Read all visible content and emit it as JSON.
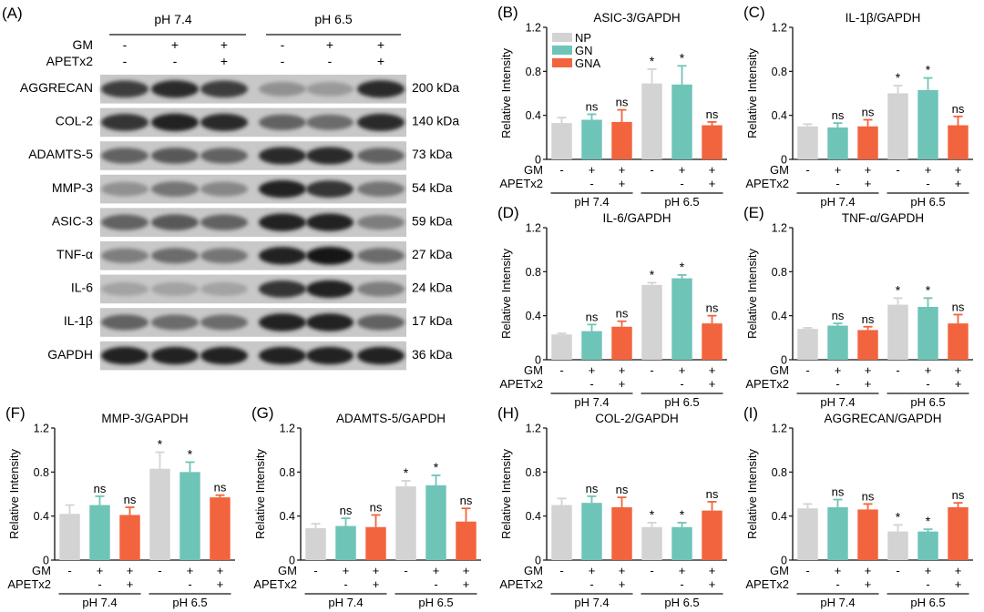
{
  "colors": {
    "NP": "#d3d3d3",
    "GN": "#6fc4b8",
    "GNA": "#f2643d"
  },
  "blot": {
    "panel_letter": "(A)",
    "group_labels": [
      "pH 7.4",
      "pH 6.5"
    ],
    "row_labels": [
      "GM",
      "APETx2"
    ],
    "gm_marks": [
      "-",
      "+",
      "+",
      "-",
      "+",
      "+"
    ],
    "apetx2_marks": [
      "-",
      "-",
      "+",
      "-",
      "-",
      "+"
    ],
    "bands": [
      {
        "protein": "AGGRECAN",
        "size": "200 kDa"
      },
      {
        "protein": "COL-2",
        "size": "140 kDa"
      },
      {
        "protein": "ADAMTS-5",
        "size": "73 kDa"
      },
      {
        "protein": "MMP-3",
        "size": "54 kDa"
      },
      {
        "protein": "ASIC-3",
        "size": "59 kDa"
      },
      {
        "protein": "TNF-α",
        "size": "27 kDa"
      },
      {
        "protein": "IL-6",
        "size": "24 kDa"
      },
      {
        "protein": "IL-1β",
        "size": "17 kDa"
      },
      {
        "protein": "GAPDH",
        "size": "36 kDa"
      }
    ]
  },
  "chart_data": [
    {
      "id": "B",
      "letter": "(B)",
      "type": "bar",
      "title": "ASIC-3/GAPDH",
      "ylabel": "Relative Intensity",
      "ylim": [
        0,
        1.2
      ],
      "yticks": [
        "0",
        "0.4",
        "0.8",
        "1.2"
      ],
      "values": [
        0.33,
        0.36,
        0.34,
        0.69,
        0.68,
        0.31
      ],
      "errors": [
        0.05,
        0.05,
        0.11,
        0.13,
        0.17,
        0.03
      ],
      "annotations": [
        "",
        "ns",
        "ns",
        "*",
        "*",
        "ns"
      ],
      "legend": [
        "NP",
        "GN",
        "GNA"
      ],
      "gm_marks": [
        "-",
        "+",
        "+",
        "-",
        "+",
        "+"
      ],
      "apetx2_marks": [
        "",
        "-",
        "+",
        "",
        "-",
        "+"
      ],
      "row_labels": [
        "GM",
        "APETx2"
      ],
      "groups": [
        "pH 7.4",
        "pH 6.5"
      ]
    },
    {
      "id": "C",
      "letter": "(C)",
      "type": "bar",
      "title": "IL-1β/GAPDH",
      "ylabel": "Relative Intensity",
      "ylim": [
        0,
        1.2
      ],
      "yticks": [
        "0",
        "0.4",
        "0.8",
        "1.2"
      ],
      "values": [
        0.3,
        0.29,
        0.3,
        0.6,
        0.63,
        0.31
      ],
      "errors": [
        0.02,
        0.04,
        0.06,
        0.07,
        0.11,
        0.08
      ],
      "annotations": [
        "",
        "ns",
        "ns",
        "*",
        "*",
        "ns"
      ],
      "gm_marks": [
        "-",
        "+",
        "+",
        "-",
        "+",
        "+"
      ],
      "apetx2_marks": [
        "",
        "-",
        "+",
        "",
        "-",
        "+"
      ],
      "row_labels": [
        "GM",
        "APETx2"
      ],
      "groups": [
        "pH 7.4",
        "pH 6.5"
      ]
    },
    {
      "id": "D",
      "letter": "(D)",
      "type": "bar",
      "title": "IL-6/GAPDH",
      "ylabel": "Relative Intensity",
      "ylim": [
        0,
        1.2
      ],
      "yticks": [
        "0",
        "0.4",
        "0.8",
        "1.2"
      ],
      "values": [
        0.23,
        0.26,
        0.3,
        0.68,
        0.74,
        0.33
      ],
      "errors": [
        0.01,
        0.06,
        0.05,
        0.02,
        0.03,
        0.07
      ],
      "annotations": [
        "",
        "ns",
        "ns",
        "*",
        "*",
        "ns"
      ],
      "gm_marks": [
        "-",
        "+",
        "+",
        "-",
        "+",
        "+"
      ],
      "apetx2_marks": [
        "",
        "-",
        "+",
        "",
        "-",
        "+"
      ],
      "row_labels": [
        "GM",
        "APETx2"
      ],
      "groups": [
        "pH 7.4",
        "pH 6.5"
      ]
    },
    {
      "id": "E",
      "letter": "(E)",
      "type": "bar",
      "title": "TNF-α/GAPDH",
      "ylabel": "Relative Intensity",
      "ylim": [
        0,
        1.2
      ],
      "yticks": [
        "0",
        "0.4",
        "0.8",
        "1.2"
      ],
      "values": [
        0.28,
        0.31,
        0.27,
        0.5,
        0.48,
        0.33
      ],
      "errors": [
        0.01,
        0.02,
        0.03,
        0.06,
        0.08,
        0.08
      ],
      "annotations": [
        "",
        "ns",
        "ns",
        "*",
        "*",
        "ns"
      ],
      "gm_marks": [
        "-",
        "+",
        "+",
        "-",
        "+",
        "+"
      ],
      "apetx2_marks": [
        "",
        "-",
        "+",
        "",
        "-",
        "+"
      ],
      "row_labels": [
        "GM",
        "APETx2"
      ],
      "groups": [
        "pH 7.4",
        "pH 6.5"
      ]
    },
    {
      "id": "F",
      "letter": "(F)",
      "type": "bar",
      "title": "MMP-3/GAPDH",
      "ylabel": "Relative Intensity",
      "ylim": [
        0,
        1.2
      ],
      "yticks": [
        "0",
        "0.4",
        "0.8",
        "1.2"
      ],
      "values": [
        0.42,
        0.5,
        0.41,
        0.83,
        0.8,
        0.57
      ],
      "errors": [
        0.08,
        0.08,
        0.07,
        0.15,
        0.09,
        0.02
      ],
      "annotations": [
        "",
        "ns",
        "ns",
        "*",
        "*",
        "ns"
      ],
      "gm_marks": [
        "-",
        "+",
        "+",
        "-",
        "+",
        "+"
      ],
      "apetx2_marks": [
        "",
        "-",
        "+",
        "",
        "-",
        "+"
      ],
      "row_labels": [
        "GM",
        "APETx2"
      ],
      "groups": [
        "pH 7.4",
        "pH 6.5"
      ]
    },
    {
      "id": "G",
      "letter": "(G)",
      "type": "bar",
      "title": "ADAMTS-5/GAPDH",
      "ylabel": "Relative Intensity",
      "ylim": [
        0,
        1.2
      ],
      "yticks": [
        "0",
        "0.4",
        "0.8",
        "1.2"
      ],
      "values": [
        0.29,
        0.31,
        0.3,
        0.67,
        0.68,
        0.35
      ],
      "errors": [
        0.04,
        0.07,
        0.11,
        0.05,
        0.09,
        0.12
      ],
      "annotations": [
        "",
        "ns",
        "ns",
        "*",
        "*",
        "ns"
      ],
      "gm_marks": [
        "-",
        "+",
        "+",
        "-",
        "+",
        "+"
      ],
      "apetx2_marks": [
        "",
        "-",
        "+",
        "",
        "-",
        "+"
      ],
      "row_labels": [
        "GM",
        "APETx2"
      ],
      "groups": [
        "pH 7.4",
        "pH 6.5"
      ]
    },
    {
      "id": "H",
      "letter": "(H)",
      "type": "bar",
      "title": "COL-2/GAPDH",
      "ylabel": "Relative Intensity",
      "ylim": [
        0,
        1.2
      ],
      "yticks": [
        "0",
        "0.4",
        "0.8",
        "1.2"
      ],
      "values": [
        0.5,
        0.52,
        0.48,
        0.3,
        0.3,
        0.45
      ],
      "errors": [
        0.06,
        0.06,
        0.09,
        0.04,
        0.04,
        0.08
      ],
      "annotations": [
        "",
        "ns",
        "ns",
        "*",
        "*",
        "ns"
      ],
      "gm_marks": [
        "-",
        "+",
        "+",
        "-",
        "+",
        "+"
      ],
      "apetx2_marks": [
        "",
        "-",
        "+",
        "",
        "-",
        "+"
      ],
      "row_labels": [
        "GM",
        "APETx2"
      ],
      "groups": [
        "pH 7.4",
        "pH 6.5"
      ]
    },
    {
      "id": "I",
      "letter": "(I)",
      "type": "bar",
      "title": "AGGRECAN/GAPDH",
      "ylabel": "Relative Intensity",
      "ylim": [
        0,
        1.2
      ],
      "yticks": [
        "0",
        "0.4",
        "0.8",
        "1.2"
      ],
      "values": [
        0.47,
        0.48,
        0.46,
        0.26,
        0.26,
        0.48
      ],
      "errors": [
        0.04,
        0.07,
        0.05,
        0.06,
        0.02,
        0.04
      ],
      "annotations": [
        "",
        "ns",
        "ns",
        "*",
        "*",
        "ns"
      ],
      "gm_marks": [
        "-",
        "+",
        "+",
        "-",
        "+",
        "+"
      ],
      "apetx2_marks": [
        "",
        "-",
        "+",
        "",
        "-",
        "+"
      ],
      "row_labels": [
        "GM",
        "APETx2"
      ],
      "groups": [
        "pH 7.4",
        "pH 6.5"
      ]
    }
  ]
}
